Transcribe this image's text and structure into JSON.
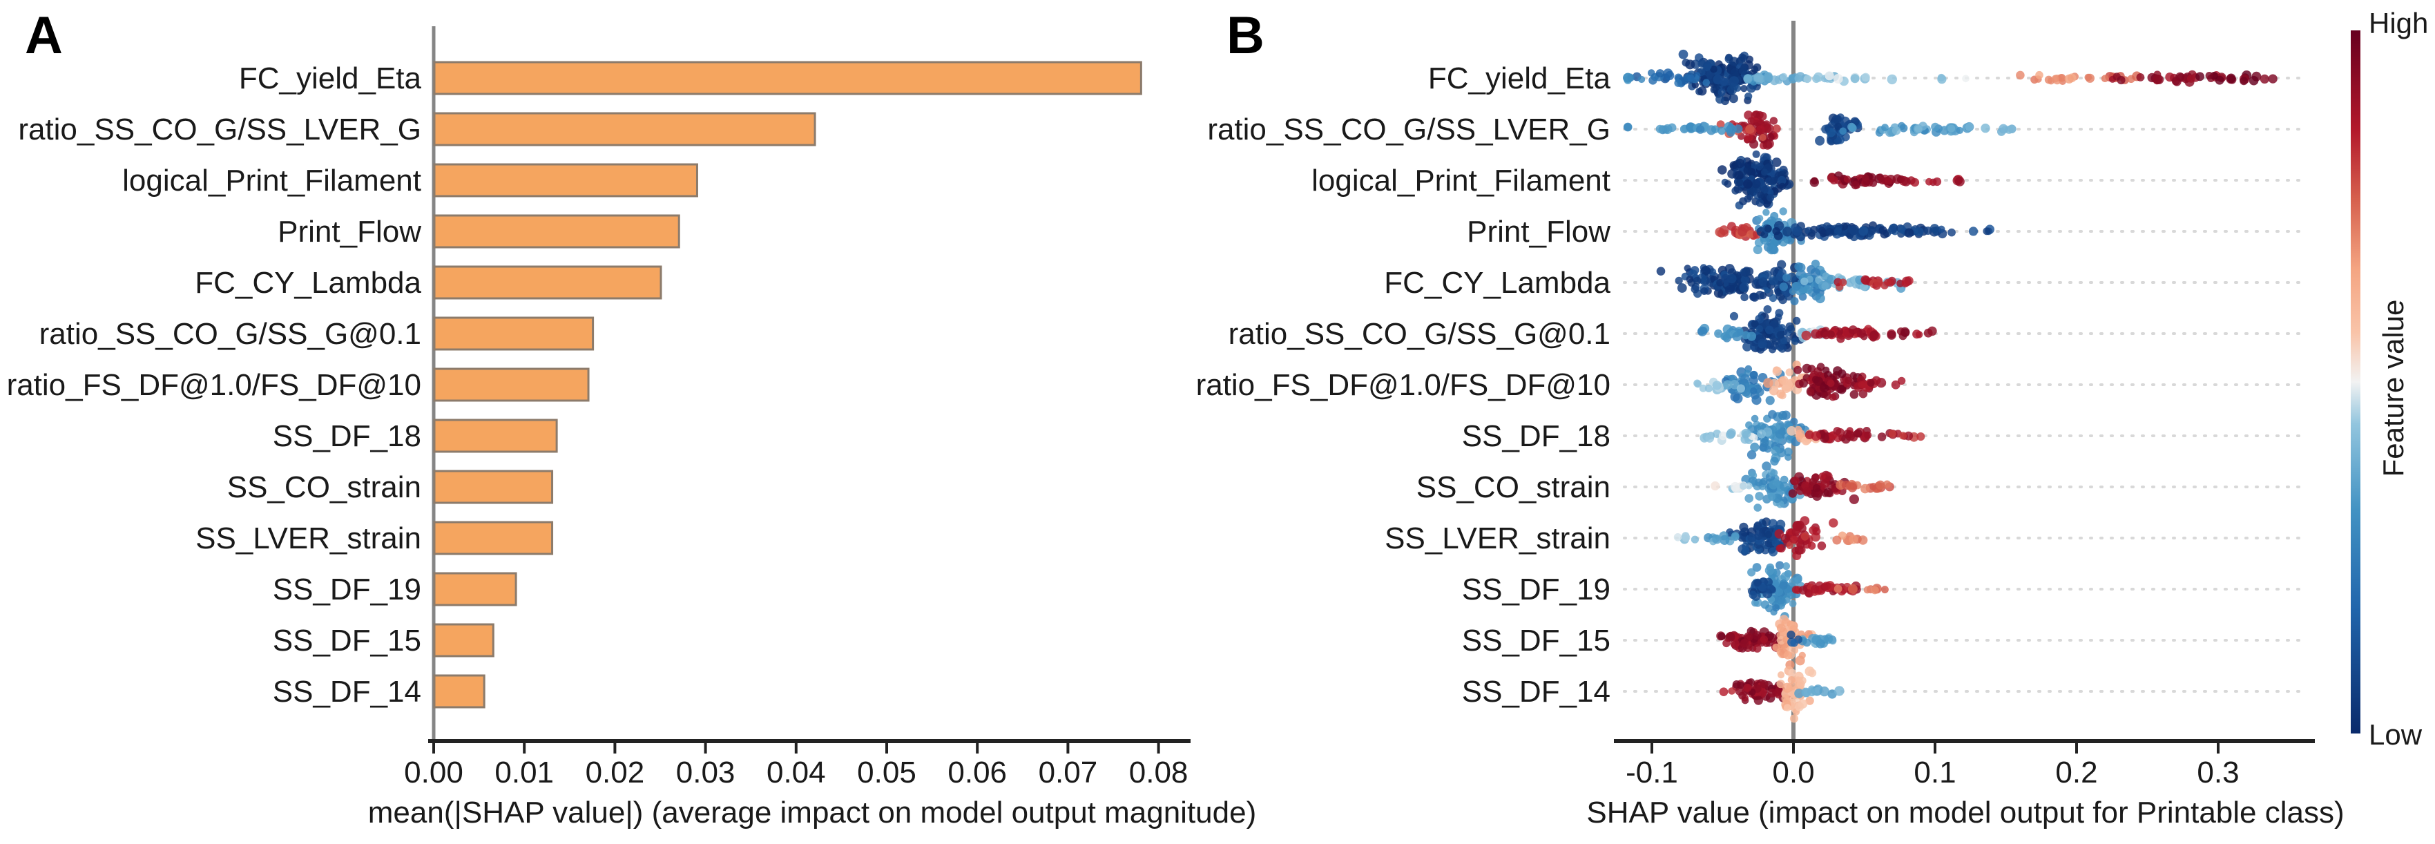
{
  "figure": {
    "background": "#ffffff"
  },
  "panels": {
    "a": {
      "letter": "A",
      "xlabel": "mean(|SHAP value|) (average impact on model output magnitude)",
      "xtick_labels": [
        "0.00",
        "0.01",
        "0.02",
        "0.03",
        "0.04",
        "0.05",
        "0.06",
        "0.07",
        "0.08"
      ]
    },
    "b": {
      "letter": "B",
      "xlabel": "SHAP value (impact on model output for Printable class)",
      "xtick_labels": [
        "-0.1",
        "0.0",
        "0.1",
        "0.2",
        "0.3"
      ]
    }
  },
  "colorbar": {
    "high_label": "High",
    "low_label": "Low",
    "title": "Feature value"
  },
  "features": [
    "FC_yield_Eta",
    "ratio_SS_CO_G/SS_LVER_G",
    "logical_Print_Filament",
    "Print_Flow",
    "FC_CY_Lambda",
    "ratio_SS_CO_G/SS_G@0.1",
    "ratio_FS_DF@1.0/FS_DF@10",
    "SS_DF_18",
    "SS_CO_strain",
    "SS_LVER_strain",
    "SS_DF_19",
    "SS_DF_15",
    "SS_DF_14"
  ],
  "colors": {
    "bar_fill": "#f5a55f",
    "bar_border": "#8c7b6b",
    "axis": "#222222",
    "gray_line": "#858585",
    "gridline": "#d8d8d8",
    "text": "#1a1a1a",
    "colormap_stops": [
      [
        0.0,
        "#0a2a6b"
      ],
      [
        0.18,
        "#2166ac"
      ],
      [
        0.32,
        "#4393c3"
      ],
      [
        0.44,
        "#92c5de"
      ],
      [
        0.5,
        "#f2f2f2"
      ],
      [
        0.57,
        "#f9c4a9"
      ],
      [
        0.66,
        "#f4a582"
      ],
      [
        0.76,
        "#d6604d"
      ],
      [
        0.86,
        "#b2182b"
      ],
      [
        1.0,
        "#67001f"
      ]
    ]
  },
  "chart_data": [
    {
      "type": "bar",
      "panel": "A",
      "orientation": "horizontal",
      "categories": [
        "FC_yield_Eta",
        "ratio_SS_CO_G/SS_LVER_G",
        "logical_Print_Filament",
        "Print_Flow",
        "FC_CY_Lambda",
        "ratio_SS_CO_G/SS_G@0.1",
        "ratio_FS_DF@1.0/FS_DF@10",
        "SS_DF_18",
        "SS_CO_strain",
        "SS_LVER_strain",
        "SS_DF_19",
        "SS_DF_15",
        "SS_DF_14"
      ],
      "values": [
        0.078,
        0.042,
        0.029,
        0.027,
        0.025,
        0.0175,
        0.017,
        0.0135,
        0.013,
        0.013,
        0.009,
        0.0065,
        0.0055
      ],
      "xlabel": "mean(|SHAP value|) (average impact on model output magnitude)",
      "xticks": [
        0,
        0.01,
        0.02,
        0.03,
        0.04,
        0.05,
        0.06,
        0.07,
        0.08
      ],
      "xlim": [
        0,
        0.0835
      ],
      "grid": false,
      "bar_color": "#f5a55f"
    },
    {
      "type": "scatter",
      "subtype": "beeswarm",
      "panel": "B",
      "categories": [
        "FC_yield_Eta",
        "ratio_SS_CO_G/SS_LVER_G",
        "logical_Print_Filament",
        "Print_Flow",
        "FC_CY_Lambda",
        "ratio_SS_CO_G/SS_G@0.1",
        "ratio_FS_DF@1.0/FS_DF@10",
        "SS_DF_18",
        "SS_CO_strain",
        "SS_LVER_strain",
        "SS_DF_19",
        "SS_DF_15",
        "SS_DF_14"
      ],
      "xlabel": "SHAP value (impact on model output for Printable class)",
      "xticks": [
        -0.1,
        0.0,
        0.1,
        0.2,
        0.3
      ],
      "xlim": [
        -0.121,
        0.363
      ],
      "grid": "dotted-horizontal",
      "colorbar": {
        "label": "Feature value",
        "high": "High",
        "low": "Low"
      },
      "cluster_format": [
        "x_center",
        "x_std",
        "count",
        "feature_value_0low_1high",
        "vertical_jitter_px"
      ],
      "swarms": [
        [
          [
            -0.048,
            0.012,
            150,
            0.05,
            36
          ],
          [
            -0.085,
            0.012,
            25,
            0.18,
            10
          ],
          [
            -0.115,
            0.006,
            6,
            0.3,
            4
          ],
          [
            -0.02,
            0.01,
            20,
            0.35,
            6
          ],
          [
            0.01,
            0.02,
            18,
            0.4,
            5
          ],
          [
            0.07,
            0.035,
            12,
            0.45,
            4
          ],
          [
            0.185,
            0.012,
            14,
            0.68,
            6
          ],
          [
            0.225,
            0.012,
            10,
            0.75,
            5
          ],
          [
            0.27,
            0.018,
            26,
            0.92,
            7
          ],
          [
            0.315,
            0.014,
            16,
            0.98,
            6
          ]
        ],
        [
          [
            -0.023,
            0.007,
            40,
            0.9,
            30
          ],
          [
            -0.035,
            0.01,
            12,
            0.82,
            14
          ],
          [
            0.032,
            0.007,
            45,
            0.08,
            22
          ],
          [
            -0.07,
            0.025,
            30,
            0.32,
            6
          ],
          [
            0.07,
            0.02,
            25,
            0.33,
            6
          ],
          [
            0.105,
            0.018,
            18,
            0.36,
            6
          ],
          [
            0.145,
            0.008,
            6,
            0.4,
            4
          ]
        ],
        [
          [
            -0.026,
            0.01,
            150,
            0.04,
            40
          ],
          [
            0.05,
            0.016,
            45,
            0.93,
            8
          ],
          [
            0.085,
            0.008,
            8,
            0.9,
            5
          ],
          [
            0.115,
            0.003,
            3,
            0.88,
            3
          ]
        ],
        [
          [
            -0.036,
            0.009,
            25,
            0.8,
            12
          ],
          [
            -0.012,
            0.008,
            55,
            0.3,
            34
          ],
          [
            0.03,
            0.025,
            100,
            0.06,
            10
          ],
          [
            0.09,
            0.015,
            15,
            0.07,
            6
          ],
          [
            0.135,
            0.006,
            4,
            0.08,
            4
          ]
        ],
        [
          [
            -0.045,
            0.02,
            110,
            0.06,
            24
          ],
          [
            -0.01,
            0.008,
            40,
            0.08,
            34
          ],
          [
            0.012,
            0.008,
            45,
            0.28,
            34
          ],
          [
            0.04,
            0.014,
            28,
            0.38,
            12
          ],
          [
            0.052,
            0.012,
            16,
            0.85,
            8
          ],
          [
            0.08,
            0.004,
            3,
            0.9,
            3
          ]
        ],
        [
          [
            -0.02,
            0.01,
            100,
            0.07,
            36
          ],
          [
            -0.042,
            0.01,
            20,
            0.3,
            10
          ],
          [
            0.012,
            0.006,
            15,
            0.45,
            8
          ],
          [
            0.04,
            0.016,
            40,
            0.88,
            8
          ],
          [
            0.08,
            0.012,
            10,
            0.92,
            5
          ]
        ],
        [
          [
            -0.03,
            0.012,
            45,
            0.25,
            24
          ],
          [
            -0.055,
            0.01,
            14,
            0.42,
            8
          ],
          [
            -0.006,
            0.006,
            22,
            0.62,
            30
          ],
          [
            0.025,
            0.012,
            70,
            0.94,
            30
          ],
          [
            0.055,
            0.012,
            20,
            0.9,
            8
          ]
        ],
        [
          [
            -0.012,
            0.008,
            70,
            0.3,
            38
          ],
          [
            -0.04,
            0.013,
            20,
            0.45,
            8
          ],
          [
            0.008,
            0.005,
            12,
            0.6,
            10
          ],
          [
            0.04,
            0.015,
            35,
            0.9,
            8
          ],
          [
            0.075,
            0.008,
            6,
            0.85,
            4
          ]
        ],
        [
          [
            -0.015,
            0.009,
            60,
            0.32,
            32
          ],
          [
            -0.04,
            0.008,
            10,
            0.48,
            6
          ],
          [
            0.018,
            0.01,
            55,
            0.92,
            20
          ],
          [
            0.05,
            0.012,
            18,
            0.75,
            6
          ]
        ],
        [
          [
            -0.022,
            0.01,
            80,
            0.08,
            24
          ],
          [
            -0.05,
            0.008,
            10,
            0.35,
            6
          ],
          [
            -0.075,
            0.006,
            5,
            0.45,
            4
          ],
          [
            0.006,
            0.009,
            40,
            0.86,
            30
          ],
          [
            0.035,
            0.008,
            8,
            0.7,
            5
          ]
        ],
        [
          [
            -0.012,
            0.007,
            80,
            0.3,
            40
          ],
          [
            -0.022,
            0.007,
            20,
            0.08,
            14
          ],
          [
            0.025,
            0.011,
            35,
            0.88,
            8
          ],
          [
            0.055,
            0.01,
            8,
            0.72,
            4
          ]
        ],
        [
          [
            -0.03,
            0.011,
            60,
            0.93,
            14
          ],
          [
            -0.003,
            0.006,
            45,
            0.64,
            38
          ],
          [
            0.015,
            0.007,
            16,
            0.35,
            6
          ],
          [
            -0.002,
            0.002,
            4,
            0.12,
            18
          ]
        ],
        [
          [
            -0.022,
            0.008,
            55,
            0.93,
            16
          ],
          [
            -0.047,
            0.002,
            2,
            0.85,
            2
          ],
          [
            0.0,
            0.005,
            45,
            0.6,
            40
          ],
          [
            0.018,
            0.007,
            14,
            0.35,
            6
          ]
        ]
      ]
    }
  ],
  "render": {
    "seed": 11,
    "dot_radius": 6
  }
}
